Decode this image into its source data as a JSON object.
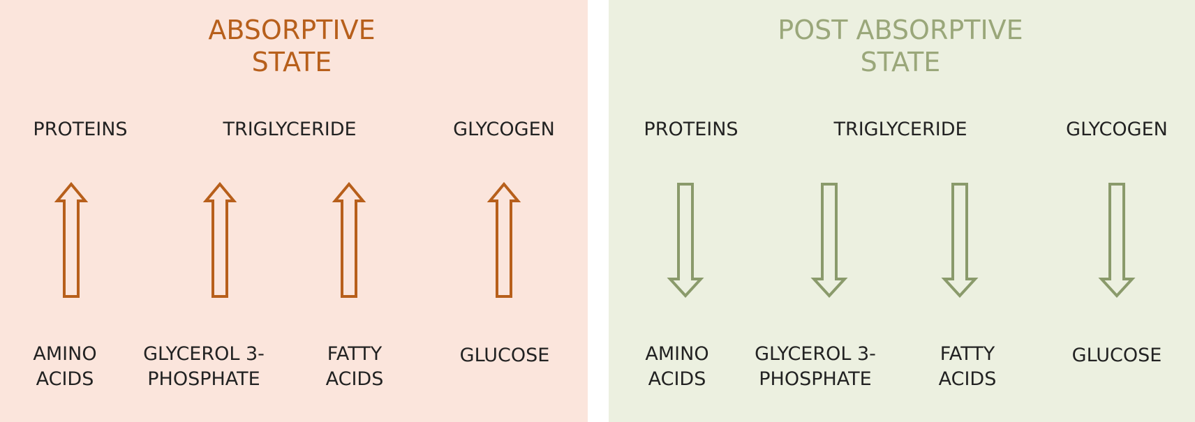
{
  "colors": {
    "absorptive_bg": "#fbe5dc",
    "absorptive_accent": "#b75f1b",
    "post_absorptive_bg": "#ecf0e0",
    "post_absorptive_accent": "#8a9a6b",
    "label_text": "#222222"
  },
  "absorptive": {
    "title_line1": "ABSORPTIVE",
    "title_line2": "STATE",
    "arrow_direction": "up",
    "top_labels": [
      "PROTEINS",
      "TRIGLYCERIDE",
      "GLYCOGEN"
    ],
    "bottom_labels": [
      {
        "line1": "AMINO",
        "line2": "ACIDS"
      },
      {
        "line1": "GLYCEROL 3-",
        "line2": "PHOSPHATE"
      },
      {
        "line1": "FATTY",
        "line2": "ACIDS"
      },
      {
        "line1": "GLUCOSE",
        "line2": ""
      }
    ]
  },
  "post_absorptive": {
    "title_line1": "POST ABSORPTIVE",
    "title_line2": "STATE",
    "arrow_direction": "down",
    "top_labels": [
      "PROTEINS",
      "TRIGLYCERIDE",
      "GLYCOGEN"
    ],
    "bottom_labels": [
      {
        "line1": "AMINO",
        "line2": "ACIDS"
      },
      {
        "line1": "GLYCEROL 3-",
        "line2": "PHOSPHATE"
      },
      {
        "line1": "FATTY",
        "line2": "ACIDS"
      },
      {
        "line1": "GLUCOSE",
        "line2": ""
      }
    ]
  }
}
